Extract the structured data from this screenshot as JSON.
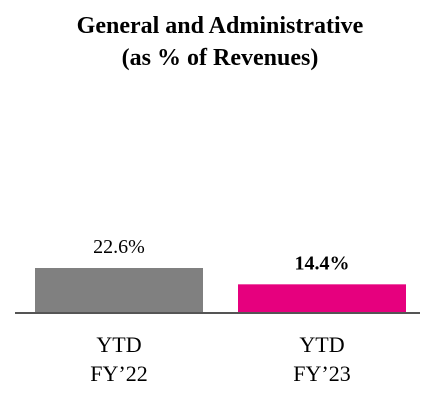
{
  "chart_data": {
    "type": "bar",
    "title": "General and Administrative",
    "subtitle": "(as % of Revenues)",
    "categories": [
      [
        "YTD",
        "FY’22"
      ],
      [
        "YTD",
        "FY’23"
      ]
    ],
    "values": [
      22.6,
      14.4
    ],
    "value_labels": [
      "22.6%",
      "14.4%"
    ],
    "value_label_bold": [
      false,
      true
    ],
    "bar_colors": [
      "#808080",
      "#e6007e"
    ],
    "xlabel": "",
    "ylabel": "",
    "grid": false,
    "legend": "none"
  }
}
